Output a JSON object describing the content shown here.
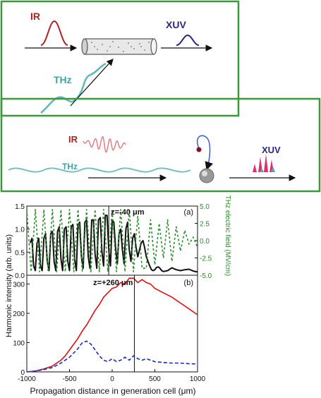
{
  "diagram": {
    "top": {
      "ir_label": "IR",
      "xuv_label": "XUV",
      "thz_label": "THz"
    },
    "bottom": {
      "ir_label": "IR",
      "thz_label": "THz",
      "xuv_label": "XUV"
    },
    "colors": {
      "frame": "#3a9a3a",
      "ir": "#b02020",
      "xuv": "#2a2a7a",
      "thz": "#3aa6a6",
      "pulse_pink": "#e0306a"
    }
  },
  "chart_data": [
    {
      "type": "line",
      "panel_label": "(a)",
      "annotation": "z=-40 μm",
      "xlim": [
        -1000,
        1000
      ],
      "ylim": [
        0.0,
        1.5
      ],
      "y_ticks": [
        "0.0",
        "0.5",
        "1.0",
        "1.5"
      ],
      "y2lim": [
        -5.0,
        5.0
      ],
      "y2_ticks": [
        "5.0",
        "2.5",
        "0.0",
        "-2.5",
        "-5.0"
      ],
      "y2label": "THz electric field (MV/cm)",
      "series": [
        {
          "style": "solid-black",
          "x": [
            -960,
            -940,
            -920,
            -900,
            -880,
            -860,
            -840,
            -820,
            -800,
            -780,
            -760,
            -740,
            -720,
            -700,
            -680,
            -660,
            -640,
            -620,
            -600,
            -580,
            -560,
            -540,
            -520,
            -500,
            -480,
            -460,
            -440,
            -420,
            -400,
            -380,
            -360,
            -340,
            -320,
            -300,
            -280,
            -260,
            -240,
            -220,
            -200,
            -180,
            -160,
            -140,
            -120,
            -100,
            -80,
            -60,
            -40,
            -20,
            0,
            20,
            40,
            60,
            80,
            100,
            120,
            140,
            160,
            180,
            200,
            220,
            240,
            260,
            280,
            300,
            320,
            340,
            360,
            380,
            400,
            420,
            440,
            460,
            480,
            500,
            520,
            540,
            560,
            580,
            600,
            650,
            700,
            750,
            800,
            850,
            900,
            950,
            1000
          ],
          "y": [
            0.7,
            0.8,
            0.2,
            0.1,
            0.7,
            0.8,
            0.2,
            0.1,
            0.8,
            0.9,
            0.3,
            0.1,
            0.9,
            0.95,
            0.3,
            0.1,
            0.95,
            1.05,
            0.35,
            0.1,
            1.0,
            1.05,
            0.3,
            0.1,
            1.05,
            1.1,
            0.35,
            0.1,
            1.1,
            1.15,
            0.4,
            0.15,
            1.15,
            1.2,
            0.4,
            0.15,
            1.2,
            1.2,
            0.45,
            0.15,
            1.2,
            1.25,
            0.5,
            0.2,
            1.3,
            1.3,
            0.55,
            0.2,
            1.2,
            1.15,
            0.6,
            0.25,
            0.9,
            1.0,
            0.55,
            0.25,
            1.0,
            1.15,
            0.55,
            0.3,
            0.8,
            0.9,
            0.6,
            0.4,
            0.55,
            0.7,
            0.75,
            0.6,
            0.4,
            0.3,
            0.2,
            0.12,
            0.1,
            0.12,
            0.17,
            0.18,
            0.15,
            0.1,
            0.08,
            0.1,
            0.16,
            0.12,
            0.1,
            0.12,
            0.13,
            0.09,
            0.07
          ]
        },
        {
          "style": "dotted-green",
          "axis": "right",
          "x": [
            -1000,
            -975,
            -950,
            -925,
            -900,
            -875,
            -850,
            -825,
            -800,
            -775,
            -750,
            -725,
            -700,
            -675,
            -650,
            -625,
            -600,
            -575,
            -550,
            -525,
            -500,
            -475,
            -450,
            -425,
            -400,
            -375,
            -350,
            -325,
            -300,
            -275,
            -250,
            -225,
            -200,
            -175,
            -150,
            -125,
            -100,
            -75,
            -50,
            -25,
            0,
            25,
            50,
            75,
            100,
            125,
            150,
            175,
            200,
            225,
            250,
            275,
            300,
            325,
            350,
            400,
            450,
            500,
            550,
            600,
            650,
            700,
            750,
            800,
            850,
            900,
            950,
            1000
          ],
          "y": [
            4.5,
            0.0,
            -4.5,
            0.0,
            4.5,
            0.0,
            -4.5,
            0.0,
            4.5,
            0.0,
            -4.5,
            0.0,
            4.5,
            0.0,
            -4.5,
            0.0,
            4.5,
            0.0,
            -4.5,
            0.0,
            4.5,
            0.0,
            -4.5,
            0.0,
            4.5,
            0.0,
            -4.5,
            0.0,
            4.5,
            0.0,
            -4.5,
            0.0,
            4.5,
            0.0,
            -4.5,
            0.0,
            4.5,
            0.0,
            -4.5,
            0.0,
            4.5,
            0.0,
            -4.5,
            0.0,
            4.5,
            0.0,
            -4.5,
            0.0,
            4.5,
            0.0,
            -4.5,
            0.0,
            3.5,
            0.0,
            -4.0,
            -4.0,
            3.0,
            -3.5,
            2.5,
            -2.5,
            3.0,
            -3.0,
            2.0,
            -1.5,
            1.5,
            -0.5,
            0.5,
            -1.0
          ]
        }
      ]
    },
    {
      "type": "line",
      "panel_label": "(b)",
      "annotation": "z=+260 μm",
      "xlim": [
        -1000,
        1000
      ],
      "x_ticks": [
        "-1000",
        "-500",
        "0",
        "500",
        "1000"
      ],
      "xlabel": "Propagation distance in generation cell (μm)",
      "ylim": [
        0,
        330
      ],
      "y_ticks": [
        "0",
        "100",
        "200",
        "300"
      ],
      "ylabel": "Harmonic intensity (arb. units)",
      "series": [
        {
          "style": "solid-red",
          "x": [
            -1000,
            -900,
            -800,
            -700,
            -600,
            -550,
            -500,
            -450,
            -400,
            -350,
            -300,
            -250,
            -200,
            -150,
            -100,
            -50,
            0,
            50,
            100,
            150,
            200,
            250,
            300,
            350,
            400,
            450,
            500,
            600,
            700,
            800,
            900,
            1000
          ],
          "y": [
            0,
            3,
            10,
            20,
            40,
            55,
            75,
            95,
            115,
            140,
            160,
            185,
            210,
            230,
            255,
            270,
            285,
            290,
            305,
            300,
            320,
            320,
            305,
            315,
            305,
            300,
            285,
            270,
            255,
            235,
            215,
            195
          ]
        },
        {
          "style": "dashed-blue",
          "x": [
            -1000,
            -900,
            -800,
            -700,
            -600,
            -500,
            -450,
            -400,
            -350,
            -300,
            -250,
            -200,
            -150,
            -100,
            -50,
            0,
            50,
            100,
            150,
            200,
            250,
            300,
            350,
            400,
            500,
            600,
            700,
            800,
            900,
            1000
          ],
          "y": [
            0,
            3,
            8,
            15,
            30,
            50,
            65,
            80,
            100,
            105,
            95,
            75,
            55,
            40,
            35,
            45,
            35,
            40,
            50,
            40,
            55,
            45,
            40,
            45,
            35,
            32,
            30,
            30,
            28,
            27
          ]
        }
      ]
    }
  ]
}
